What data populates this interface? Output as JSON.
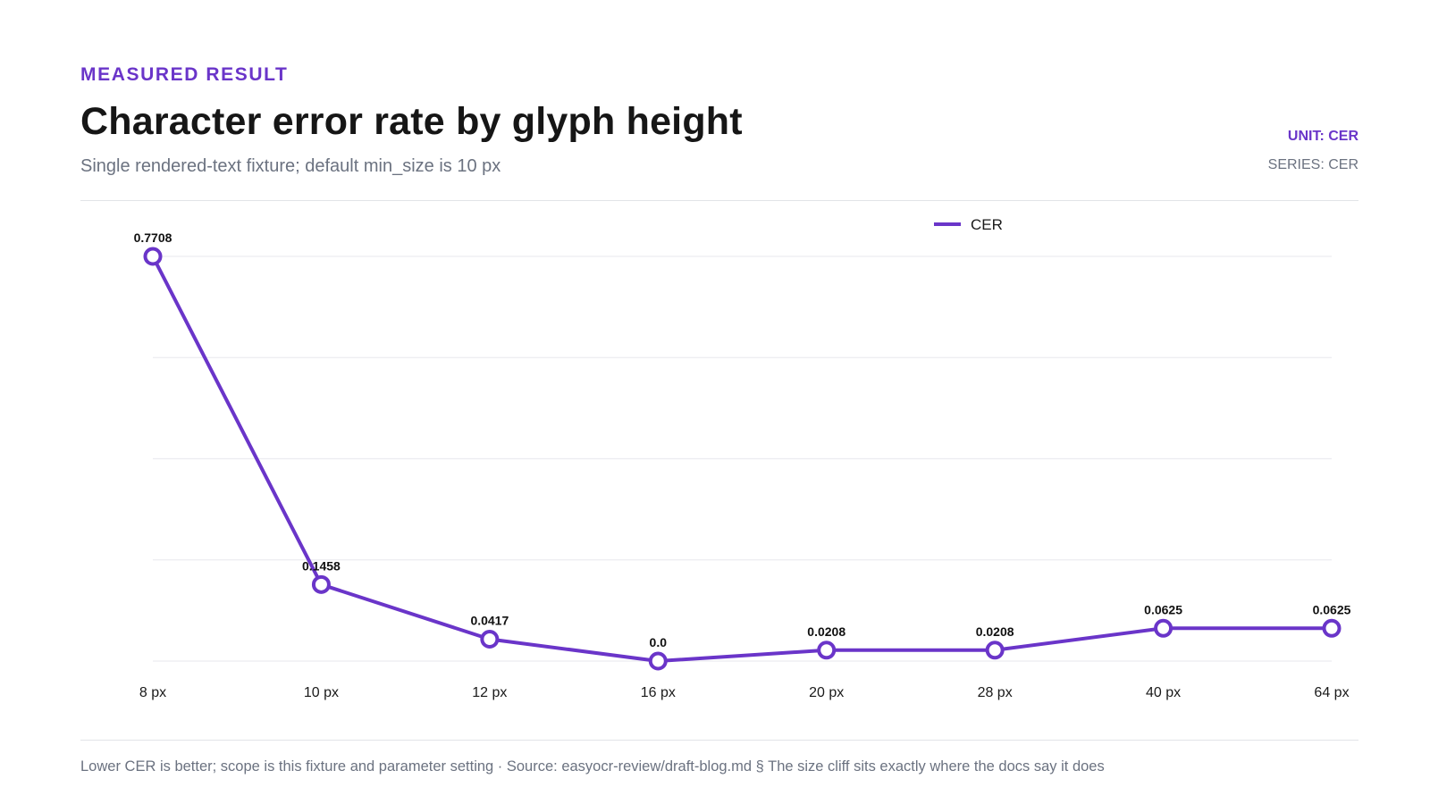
{
  "header": {
    "eyebrow": "MEASURED RESULT",
    "title": "Character error rate by glyph height",
    "subtitle": "Single rendered-text fixture; default min_size is 10 px",
    "unit": "UNIT: CER",
    "series_tag": "SERIES: CER"
  },
  "footer": {
    "note": "Lower CER is better; scope is this fixture and parameter setting · Source: easyocr-review/draft-blog.md § The size cliff sits exactly where the docs say it does"
  },
  "colors": {
    "accent": "#6a35c9",
    "grid": "#ececf0",
    "axis_text": "#1a1a1a"
  },
  "chart_data": {
    "type": "line",
    "categories": [
      "8 px",
      "10 px",
      "12 px",
      "16 px",
      "20 px",
      "28 px",
      "40 px",
      "64 px"
    ],
    "series": [
      {
        "name": "CER",
        "values": [
          0.7708,
          0.1458,
          0.0417,
          0.0,
          0.0208,
          0.0208,
          0.0625,
          0.0625
        ],
        "labels": [
          "0.7708",
          "0.1458",
          "0.0417",
          "0.0",
          "0.0208",
          "0.0208",
          "0.0625",
          "0.0625"
        ]
      }
    ],
    "ylim": [
      0,
      0.7708
    ],
    "grid": true,
    "legend": "top-center"
  }
}
